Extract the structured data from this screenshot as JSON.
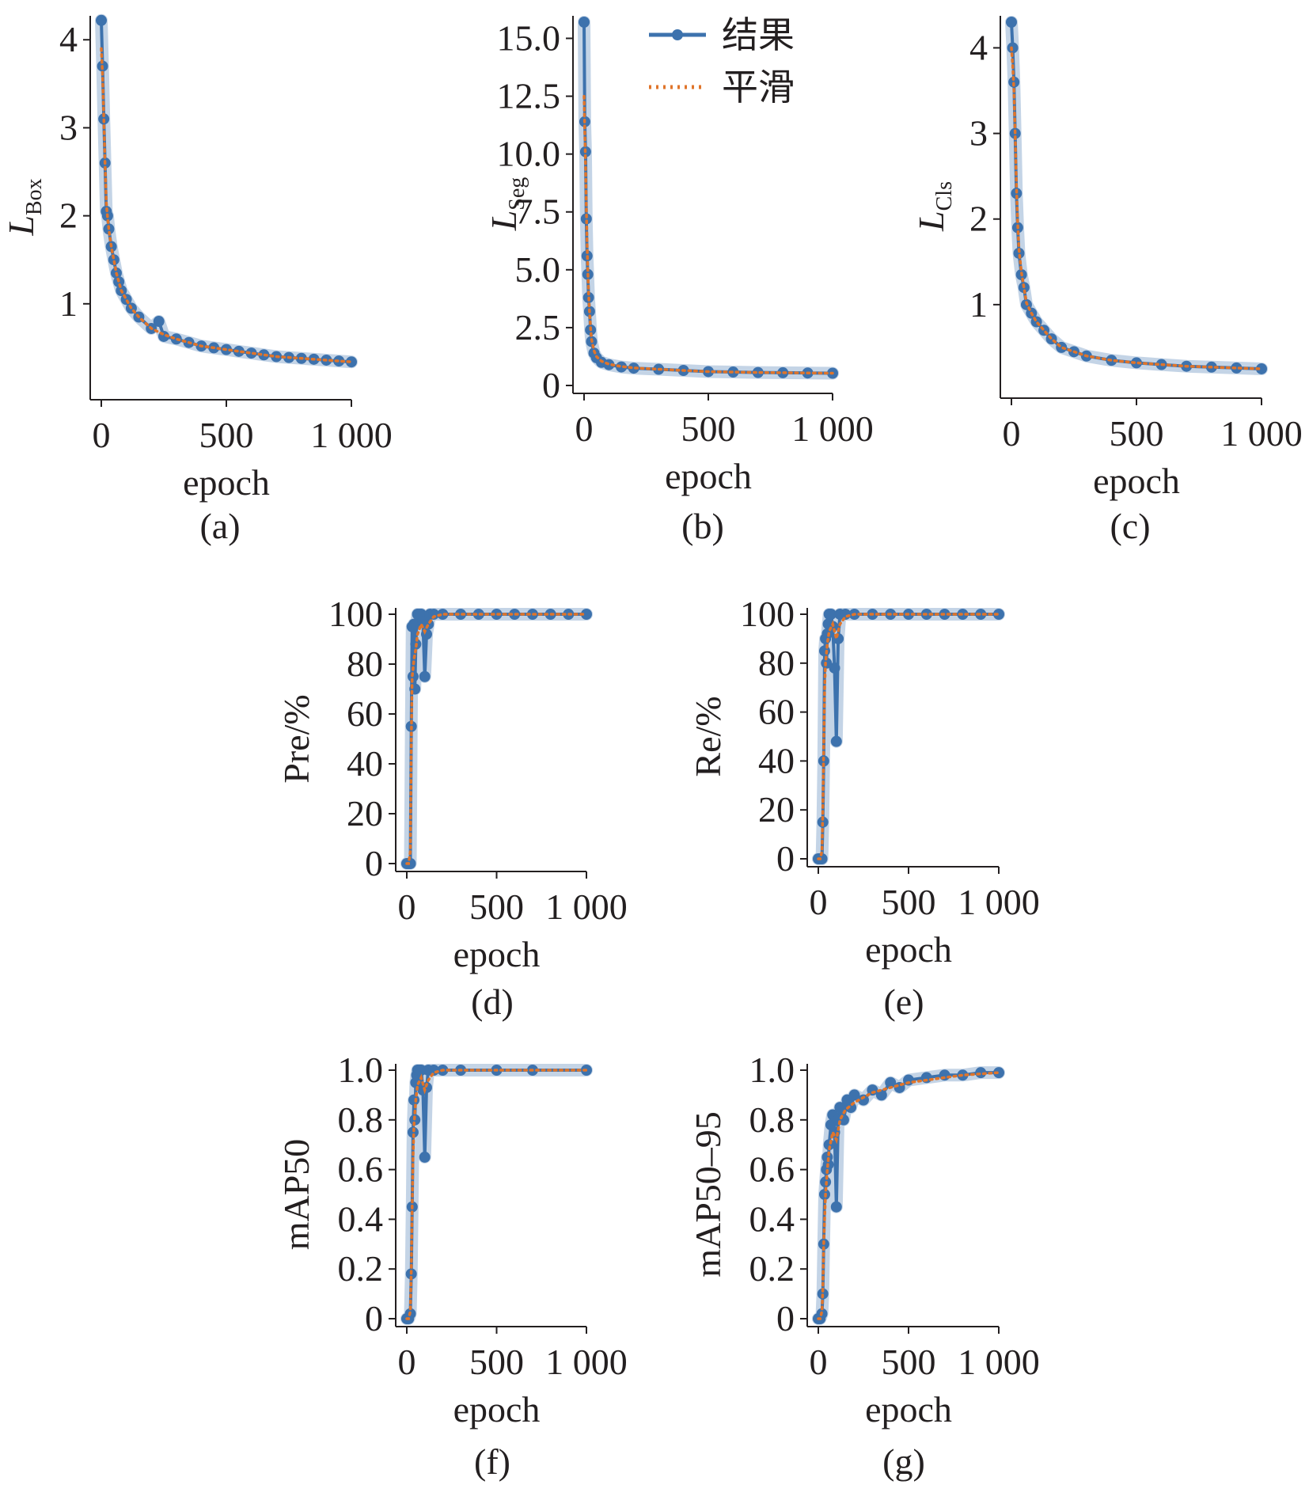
{
  "colors": {
    "result": "#3d72ad",
    "smooth": "#e0752b",
    "axis": "#231f20"
  },
  "legend": {
    "result_label": "结果",
    "smooth_label": "平滑"
  },
  "chart_data": [
    {
      "id": "a",
      "type": "line",
      "caption": "(a)",
      "ylabel": {
        "main": "L",
        "sub": "Box"
      },
      "xlabel": "epoch",
      "xlim": [
        0,
        1000
      ],
      "ylim": [
        0,
        4.2
      ],
      "xticks": [
        0,
        500,
        1000
      ],
      "xtick_labels": [
        "0",
        "500",
        "1 000"
      ],
      "yticks": [
        1,
        2,
        3,
        4
      ],
      "ytick_labels": [
        "1",
        "2",
        "3",
        "4"
      ],
      "grid": false,
      "legend": "none",
      "series": [
        {
          "name": "结果",
          "x": [
            0,
            5,
            10,
            15,
            20,
            25,
            30,
            40,
            50,
            60,
            70,
            80,
            100,
            120,
            150,
            200,
            230,
            250,
            300,
            350,
            400,
            450,
            500,
            550,
            600,
            650,
            700,
            750,
            800,
            850,
            900,
            950,
            1000
          ],
          "y": [
            4.22,
            3.7,
            3.1,
            2.6,
            2.05,
            2.0,
            1.85,
            1.65,
            1.5,
            1.35,
            1.25,
            1.15,
            1.05,
            0.95,
            0.85,
            0.72,
            0.8,
            0.63,
            0.6,
            0.56,
            0.52,
            0.5,
            0.48,
            0.46,
            0.44,
            0.42,
            0.4,
            0.39,
            0.38,
            0.37,
            0.36,
            0.35,
            0.34
          ]
        },
        {
          "name": "平滑",
          "x": [
            0,
            5,
            10,
            15,
            20,
            25,
            30,
            40,
            50,
            60,
            70,
            80,
            100,
            120,
            150,
            200,
            250,
            300,
            350,
            400,
            450,
            500,
            550,
            600,
            650,
            700,
            750,
            800,
            850,
            900,
            950,
            1000
          ],
          "y": [
            3.9,
            3.6,
            3.1,
            2.6,
            2.15,
            1.98,
            1.85,
            1.65,
            1.5,
            1.35,
            1.25,
            1.15,
            1.05,
            0.95,
            0.85,
            0.72,
            0.65,
            0.6,
            0.56,
            0.52,
            0.5,
            0.48,
            0.46,
            0.44,
            0.42,
            0.4,
            0.39,
            0.38,
            0.37,
            0.36,
            0.35,
            0.34
          ]
        }
      ]
    },
    {
      "id": "b",
      "type": "line",
      "caption": "(b)",
      "ylabel": {
        "main": "L",
        "sub": "Seg"
      },
      "xlabel": "epoch",
      "xlim": [
        0,
        1000
      ],
      "ylim": [
        0,
        15.7
      ],
      "xticks": [
        0,
        500,
        1000
      ],
      "xtick_labels": [
        "0",
        "500",
        "1 000"
      ],
      "yticks": [
        0,
        2.5,
        5,
        7.5,
        10,
        12.5,
        15
      ],
      "ytick_labels": [
        "0",
        "2.5",
        "5.0",
        "7.5",
        "10.0",
        "12.5",
        "15.0"
      ],
      "grid": false,
      "legend": "top-right",
      "series": [
        {
          "name": "结果",
          "x": [
            0,
            3,
            6,
            9,
            12,
            15,
            18,
            22,
            26,
            30,
            40,
            50,
            70,
            100,
            150,
            200,
            300,
            400,
            500,
            600,
            700,
            800,
            900,
            1000
          ],
          "y": [
            15.7,
            11.4,
            10.1,
            7.2,
            5.6,
            4.8,
            3.8,
            3.2,
            2.4,
            1.9,
            1.4,
            1.2,
            1.0,
            0.9,
            0.8,
            0.75,
            0.7,
            0.65,
            0.6,
            0.58,
            0.56,
            0.55,
            0.54,
            0.53
          ]
        },
        {
          "name": "平滑",
          "x": [
            0,
            3,
            6,
            9,
            12,
            15,
            18,
            22,
            26,
            30,
            40,
            50,
            70,
            100,
            150,
            200,
            300,
            400,
            500,
            600,
            700,
            800,
            900,
            1000
          ],
          "y": [
            12.5,
            11.0,
            9.5,
            7.8,
            6.2,
            5.0,
            4.0,
            3.2,
            2.5,
            2.0,
            1.5,
            1.25,
            1.05,
            0.92,
            0.82,
            0.76,
            0.7,
            0.65,
            0.6,
            0.58,
            0.56,
            0.55,
            0.54,
            0.53
          ]
        }
      ]
    },
    {
      "id": "c",
      "type": "line",
      "caption": "(c)",
      "ylabel": {
        "main": "L",
        "sub": "Cls"
      },
      "xlabel": "epoch",
      "xlim": [
        0,
        1000
      ],
      "ylim": [
        0,
        4.3
      ],
      "xticks": [
        0,
        500,
        1000
      ],
      "xtick_labels": [
        "0",
        "500",
        "1 000"
      ],
      "yticks": [
        1,
        2,
        3,
        4
      ],
      "ytick_labels": [
        "1",
        "2",
        "3",
        "4"
      ],
      "grid": false,
      "legend": "none",
      "series": [
        {
          "name": "结果",
          "x": [
            0,
            5,
            10,
            15,
            20,
            25,
            30,
            40,
            50,
            60,
            80,
            100,
            130,
            160,
            200,
            250,
            300,
            400,
            500,
            600,
            700,
            800,
            900,
            1000
          ],
          "y": [
            4.3,
            4.0,
            3.6,
            3.0,
            2.3,
            1.9,
            1.6,
            1.35,
            1.2,
            1.0,
            0.9,
            0.8,
            0.7,
            0.6,
            0.5,
            0.45,
            0.4,
            0.35,
            0.32,
            0.3,
            0.28,
            0.27,
            0.26,
            0.25
          ]
        },
        {
          "name": "平滑",
          "x": [
            0,
            5,
            10,
            15,
            20,
            25,
            30,
            40,
            50,
            60,
            80,
            100,
            130,
            160,
            200,
            250,
            300,
            400,
            500,
            600,
            700,
            800,
            900,
            1000
          ],
          "y": [
            4.0,
            3.8,
            3.5,
            3.0,
            2.4,
            1.95,
            1.65,
            1.38,
            1.2,
            1.02,
            0.9,
            0.8,
            0.7,
            0.6,
            0.5,
            0.45,
            0.4,
            0.35,
            0.32,
            0.3,
            0.28,
            0.27,
            0.26,
            0.25
          ]
        }
      ]
    },
    {
      "id": "d",
      "type": "line",
      "caption": "(d)",
      "ylabel": {
        "main": "Pre/%",
        "sub": ""
      },
      "xlabel": "epoch",
      "xlim": [
        0,
        1000
      ],
      "ylim": [
        0,
        100
      ],
      "xticks": [
        0,
        500,
        1000
      ],
      "xtick_labels": [
        "0",
        "500",
        "1 000"
      ],
      "yticks": [
        0,
        20,
        40,
        60,
        80,
        100
      ],
      "ytick_labels": [
        "0",
        "20",
        "40",
        "60",
        "80",
        "100"
      ],
      "grid": false,
      "legend": "none",
      "series": [
        {
          "name": "结果",
          "x": [
            0,
            10,
            20,
            25,
            30,
            35,
            40,
            45,
            50,
            55,
            60,
            70,
            80,
            90,
            100,
            110,
            120,
            130,
            150,
            200,
            300,
            400,
            500,
            600,
            700,
            800,
            900,
            1000
          ],
          "y": [
            0,
            0,
            0,
            55,
            95,
            75,
            96,
            70,
            88,
            96,
            100,
            100,
            100,
            97,
            75,
            92,
            96,
            100,
            100,
            100,
            100,
            100,
            100,
            100,
            100,
            100,
            100,
            100
          ]
        },
        {
          "name": "平滑",
          "x": [
            0,
            10,
            20,
            25,
            30,
            35,
            40,
            50,
            60,
            80,
            100,
            120,
            150,
            200,
            300,
            500,
            700,
            1000
          ],
          "y": [
            0,
            0,
            5,
            50,
            75,
            78,
            82,
            86,
            92,
            96,
            93,
            96,
            99,
            100,
            100,
            100,
            100,
            100
          ]
        }
      ]
    },
    {
      "id": "e",
      "type": "line",
      "caption": "(e)",
      "ylabel": {
        "main": "Re/%",
        "sub": ""
      },
      "xlabel": "epoch",
      "xlim": [
        0,
        1000
      ],
      "ylim": [
        0,
        100
      ],
      "xticks": [
        0,
        500,
        1000
      ],
      "xtick_labels": [
        "0",
        "500",
        "1 000"
      ],
      "yticks": [
        0,
        20,
        40,
        60,
        80,
        100
      ],
      "ytick_labels": [
        "0",
        "20",
        "40",
        "60",
        "80",
        "100"
      ],
      "grid": false,
      "legend": "none",
      "series": [
        {
          "name": "结果",
          "x": [
            0,
            10,
            20,
            25,
            30,
            35,
            40,
            45,
            50,
            55,
            60,
            70,
            80,
            90,
            100,
            110,
            120,
            150,
            200,
            300,
            400,
            500,
            600,
            700,
            800,
            900,
            1000
          ],
          "y": [
            0,
            0,
            0,
            15,
            40,
            85,
            90,
            80,
            92,
            96,
            100,
            100,
            95,
            78,
            48,
            90,
            100,
            100,
            100,
            100,
            100,
            100,
            100,
            100,
            100,
            100,
            100
          ]
        },
        {
          "name": "平滑",
          "x": [
            0,
            10,
            20,
            25,
            30,
            35,
            40,
            50,
            60,
            80,
            100,
            120,
            150,
            200,
            300,
            500,
            700,
            1000
          ],
          "y": [
            0,
            0,
            3,
            20,
            45,
            70,
            80,
            88,
            93,
            96,
            90,
            96,
            99,
            100,
            100,
            100,
            100,
            100
          ]
        }
      ]
    },
    {
      "id": "f",
      "type": "line",
      "caption": "(f)",
      "ylabel": {
        "main": "mAP50",
        "sub": ""
      },
      "xlabel": "epoch",
      "xlim": [
        0,
        1000
      ],
      "ylim": [
        0,
        1.0
      ],
      "xticks": [
        0,
        500,
        1000
      ],
      "xtick_labels": [
        "0",
        "500",
        "1 000"
      ],
      "yticks": [
        0,
        0.2,
        0.4,
        0.6,
        0.8,
        1.0
      ],
      "ytick_labels": [
        "0",
        "0.2",
        "0.4",
        "0.6",
        "0.8",
        "1.0"
      ],
      "grid": false,
      "legend": "none",
      "series": [
        {
          "name": "结果",
          "x": [
            0,
            10,
            20,
            25,
            30,
            35,
            40,
            45,
            50,
            55,
            60,
            70,
            80,
            90,
            100,
            110,
            120,
            150,
            200,
            300,
            500,
            700,
            1000
          ],
          "y": [
            0,
            0,
            0.02,
            0.18,
            0.45,
            0.75,
            0.88,
            0.8,
            0.95,
            0.98,
            1.0,
            1.0,
            1.0,
            0.92,
            0.65,
            0.93,
            1.0,
            1.0,
            1.0,
            1.0,
            1.0,
            1.0,
            1.0
          ]
        },
        {
          "name": "平滑",
          "x": [
            0,
            10,
            20,
            25,
            30,
            35,
            40,
            50,
            60,
            80,
            100,
            120,
            150,
            200,
            300,
            500,
            700,
            1000
          ],
          "y": [
            0,
            0,
            0.03,
            0.2,
            0.45,
            0.65,
            0.78,
            0.88,
            0.94,
            0.97,
            0.92,
            0.96,
            0.99,
            1.0,
            1.0,
            1.0,
            1.0,
            1.0
          ]
        }
      ]
    },
    {
      "id": "g",
      "type": "line",
      "caption": "(g)",
      "ylabel": {
        "main": "mAP50–95",
        "sub": ""
      },
      "xlabel": "epoch",
      "xlim": [
        0,
        1000
      ],
      "ylim": [
        0,
        1.0
      ],
      "xticks": [
        0,
        500,
        1000
      ],
      "xtick_labels": [
        "0",
        "500",
        "1 000"
      ],
      "yticks": [
        0,
        0.2,
        0.4,
        0.6,
        0.8,
        1.0
      ],
      "ytick_labels": [
        "0",
        "0.2",
        "0.4",
        "0.6",
        "0.8",
        "1.0"
      ],
      "grid": false,
      "legend": "none",
      "series": [
        {
          "name": "结果",
          "x": [
            0,
            10,
            20,
            25,
            30,
            35,
            40,
            45,
            50,
            55,
            60,
            70,
            80,
            90,
            100,
            110,
            120,
            140,
            160,
            180,
            200,
            250,
            300,
            350,
            400,
            450,
            500,
            600,
            700,
            800,
            900,
            1000
          ],
          "y": [
            0,
            0,
            0.02,
            0.1,
            0.3,
            0.5,
            0.55,
            0.6,
            0.65,
            0.62,
            0.7,
            0.78,
            0.82,
            0.75,
            0.45,
            0.8,
            0.85,
            0.8,
            0.88,
            0.85,
            0.9,
            0.88,
            0.92,
            0.9,
            0.95,
            0.93,
            0.96,
            0.97,
            0.98,
            0.98,
            0.99,
            0.99
          ]
        },
        {
          "name": "平滑",
          "x": [
            0,
            10,
            20,
            25,
            30,
            40,
            50,
            60,
            80,
            100,
            120,
            150,
            200,
            250,
            300,
            400,
            500,
            600,
            700,
            800,
            900,
            1000
          ],
          "y": [
            0,
            0,
            0.03,
            0.12,
            0.3,
            0.5,
            0.6,
            0.68,
            0.75,
            0.72,
            0.8,
            0.84,
            0.87,
            0.89,
            0.91,
            0.93,
            0.95,
            0.96,
            0.97,
            0.98,
            0.985,
            0.99
          ]
        }
      ]
    }
  ]
}
